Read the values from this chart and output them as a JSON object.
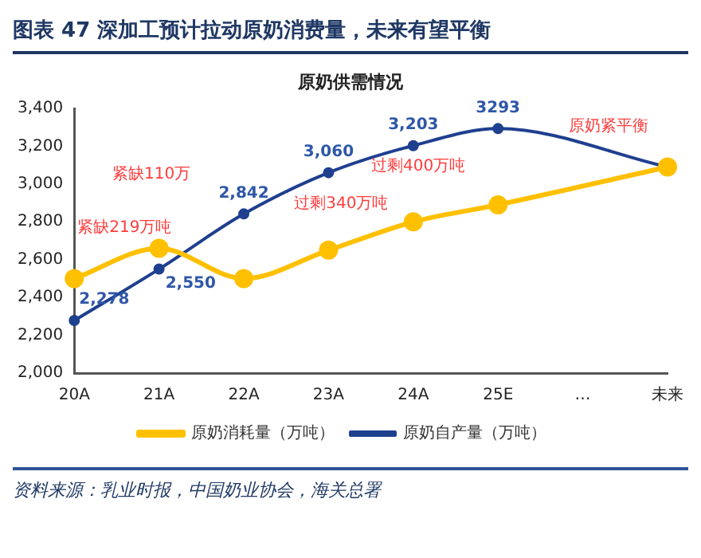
{
  "chart_data": {
    "type": "line",
    "title": "图表 47 深加工预计拉动原奶消费量，未来有望平衡",
    "subtitle": "原奶供需情况",
    "categories": [
      "20A",
      "21A",
      "22A",
      "23A",
      "24A",
      "25E",
      "…",
      "未来"
    ],
    "series": [
      {
        "name": "原奶自产量（万吨）",
        "color": "#1f3f8f",
        "values": [
          2278,
          2550,
          2842,
          3060,
          3203,
          3293,
          null,
          3090
        ],
        "value_labels": [
          "2,278",
          "2,550",
          "2,842",
          "3,060",
          "3,203",
          "3293",
          null,
          null
        ]
      },
      {
        "name": "原奶消耗量（万吨）",
        "color": "#ffc000",
        "values": [
          2500,
          2660,
          2500,
          2650,
          2800,
          2890,
          null,
          3090
        ]
      }
    ],
    "ylim": [
      2000,
      3400
    ],
    "yticks": [
      {
        "value": 2000,
        "label": "2,000"
      },
      {
        "value": 2200,
        "label": "2,200"
      },
      {
        "value": 2400,
        "label": "2,400"
      },
      {
        "value": 2600,
        "label": "2,600"
      },
      {
        "value": 2800,
        "label": "2,800"
      },
      {
        "value": 3000,
        "label": "3,000"
      },
      {
        "value": 3200,
        "label": "3,200"
      },
      {
        "value": 3400,
        "label": "3,400"
      }
    ],
    "grid": false,
    "legend": "bottom",
    "marker": "circle",
    "annotations": [
      "紧缺219万吨",
      "紧缺110万",
      "过剩340万吨",
      "过剩400万吨",
      "原奶紧平衡",
      "资料来源：乳业时报，中国奶业协会，海关总署"
    ]
  }
}
